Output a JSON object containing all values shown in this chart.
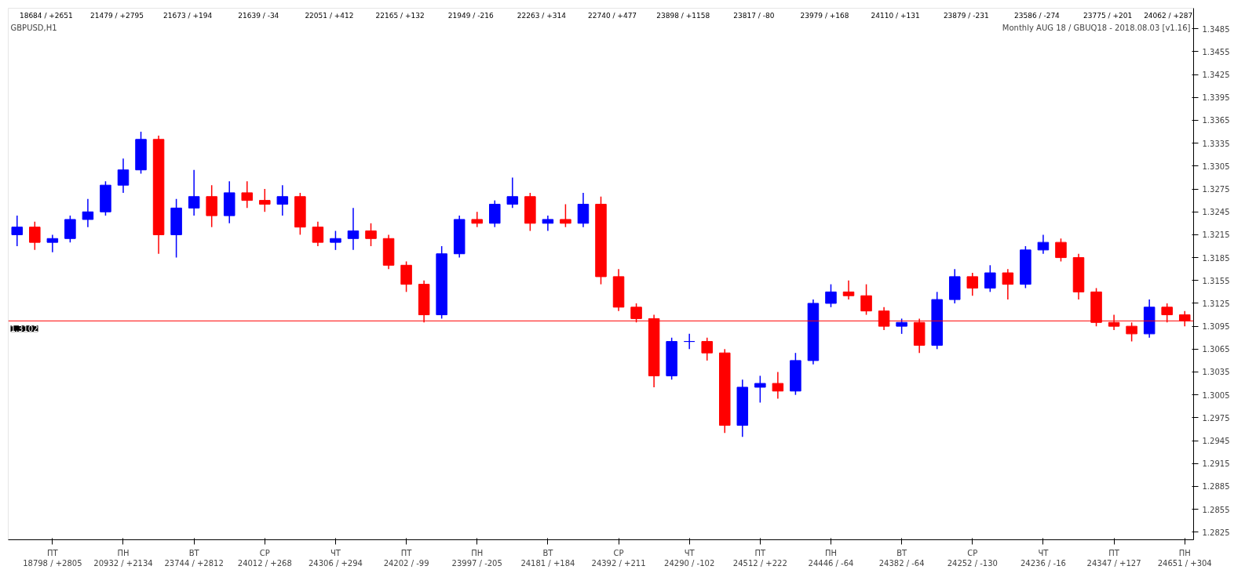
{
  "chart_data": {
    "type": "candlestick",
    "title": "GBPUSD,H1",
    "subtitle": "Monthly AUG 18 / GBUQ18 - 2018.08.03 [v1.16]",
    "categories": [
      null,
      null,
      "ПТ\n18798 / +2805",
      null,
      null,
      null,
      "ПН\n20932 / +2134",
      null,
      null,
      null,
      "ВТ\n23744 / +2812",
      null,
      null,
      null,
      "СР\n24012 / +268",
      null,
      null,
      null,
      "ЧТ\n24306 / +294",
      null,
      null,
      null,
      "ПТ\n24202 / -99",
      null,
      null,
      null,
      "ПН\n23997 / -205",
      null,
      null,
      null,
      "ВТ\n24181 / +184",
      null,
      null,
      null,
      "СР\n24392 / +211",
      null,
      null,
      null,
      "ЧТ\n24290 / -102",
      null,
      null,
      null,
      "ПТ\n24512 / +222",
      null,
      null,
      null,
      "ПН\n24446 / -64",
      null,
      null,
      null,
      "ВТ\n24382 / -64",
      null,
      null,
      null,
      "СР\n24252 / -130",
      null,
      null,
      null,
      "ЧТ\n24236 / -16",
      null,
      null,
      null,
      "ПТ\n24347 / +127",
      null,
      null,
      null,
      "ПН\n24651 / +304"
    ],
    "ohlc": [
      [
        1.3215,
        1.324,
        1.32,
        1.3225
      ],
      [
        1.3225,
        1.3232,
        1.3195,
        1.3205
      ],
      [
        1.3205,
        1.3215,
        1.3192,
        1.321
      ],
      [
        1.321,
        1.324,
        1.3205,
        1.3235
      ],
      [
        1.3235,
        1.3262,
        1.3225,
        1.3245
      ],
      [
        1.3245,
        1.3285,
        1.324,
        1.328
      ],
      [
        1.328,
        1.3315,
        1.327,
        1.33
      ],
      [
        1.33,
        1.335,
        1.3295,
        1.334
      ],
      [
        1.334,
        1.3345,
        1.319,
        1.3215
      ],
      [
        1.3215,
        1.3262,
        1.3185,
        1.325
      ],
      [
        1.325,
        1.33,
        1.324,
        1.3265
      ],
      [
        1.3265,
        1.328,
        1.3225,
        1.324
      ],
      [
        1.324,
        1.3285,
        1.323,
        1.327
      ],
      [
        1.327,
        1.3285,
        1.325,
        1.326
      ],
      [
        1.326,
        1.3275,
        1.3245,
        1.3255
      ],
      [
        1.3255,
        1.328,
        1.324,
        1.3265
      ],
      [
        1.3265,
        1.327,
        1.3215,
        1.3225
      ],
      [
        1.3225,
        1.3232,
        1.32,
        1.3205
      ],
      [
        1.3205,
        1.322,
        1.3195,
        1.321
      ],
      [
        1.321,
        1.325,
        1.3195,
        1.322
      ],
      [
        1.322,
        1.323,
        1.32,
        1.321
      ],
      [
        1.321,
        1.3215,
        1.317,
        1.3175
      ],
      [
        1.3175,
        1.318,
        1.314,
        1.315
      ],
      [
        1.315,
        1.3155,
        1.31,
        1.311
      ],
      [
        1.311,
        1.32,
        1.3105,
        1.319
      ],
      [
        1.319,
        1.324,
        1.3185,
        1.3235
      ],
      [
        1.3235,
        1.3245,
        1.3225,
        1.323
      ],
      [
        1.323,
        1.326,
        1.3225,
        1.3255
      ],
      [
        1.3255,
        1.329,
        1.325,
        1.3265
      ],
      [
        1.3265,
        1.327,
        1.322,
        1.323
      ],
      [
        1.323,
        1.324,
        1.322,
        1.3235
      ],
      [
        1.3235,
        1.3255,
        1.3225,
        1.323
      ],
      [
        1.323,
        1.327,
        1.3225,
        1.3255
      ],
      [
        1.3255,
        1.3265,
        1.315,
        1.316
      ],
      [
        1.316,
        1.317,
        1.3115,
        1.312
      ],
      [
        1.312,
        1.3125,
        1.31,
        1.3105
      ],
      [
        1.3105,
        1.311,
        1.3015,
        1.303
      ],
      [
        1.303,
        1.308,
        1.3025,
        1.3075
      ],
      [
        1.3075,
        1.3085,
        1.3065,
        1.3075
      ],
      [
        1.3075,
        1.308,
        1.305,
        1.306
      ],
      [
        1.306,
        1.3065,
        1.2955,
        1.2965
      ],
      [
        1.2965,
        1.3025,
        1.295,
        1.3015
      ],
      [
        1.3015,
        1.303,
        1.2995,
        1.302
      ],
      [
        1.302,
        1.3035,
        1.3,
        1.301
      ],
      [
        1.301,
        1.306,
        1.3005,
        1.305
      ],
      [
        1.305,
        1.313,
        1.3045,
        1.3125
      ],
      [
        1.3125,
        1.315,
        1.312,
        1.314
      ],
      [
        1.314,
        1.3155,
        1.313,
        1.3135
      ],
      [
        1.3135,
        1.315,
        1.311,
        1.3115
      ],
      [
        1.3115,
        1.312,
        1.309,
        1.3095
      ],
      [
        1.3095,
        1.3105,
        1.3085,
        1.31
      ],
      [
        1.31,
        1.3105,
        1.306,
        1.307
      ],
      [
        1.307,
        1.314,
        1.3065,
        1.313
      ],
      [
        1.313,
        1.317,
        1.3125,
        1.316
      ],
      [
        1.316,
        1.3165,
        1.3135,
        1.3145
      ],
      [
        1.3145,
        1.3175,
        1.314,
        1.3165
      ],
      [
        1.3165,
        1.317,
        1.313,
        1.315
      ],
      [
        1.315,
        1.32,
        1.3145,
        1.3195
      ],
      [
        1.3195,
        1.3215,
        1.319,
        1.3205
      ],
      [
        1.3205,
        1.321,
        1.318,
        1.3185
      ],
      [
        1.3185,
        1.319,
        1.313,
        1.314
      ],
      [
        1.314,
        1.3145,
        1.3095,
        1.31
      ],
      [
        1.31,
        1.311,
        1.309,
        1.3095
      ],
      [
        1.3095,
        1.31,
        1.3075,
        1.3085
      ],
      [
        1.3085,
        1.313,
        1.308,
        1.312
      ],
      [
        1.312,
        1.3125,
        1.31,
        1.311
      ],
      [
        1.311,
        1.3115,
        1.3095,
        1.3102
      ]
    ],
    "ylim": [
      1.2815,
      1.3512
    ],
    "yticks": [
      1.2825,
      1.2855,
      1.2885,
      1.2915,
      1.2945,
      1.2975,
      1.3005,
      1.3035,
      1.3065,
      1.3095,
      1.3125,
      1.3155,
      1.3185,
      1.3215,
      1.3245,
      1.3275,
      1.3305,
      1.3335,
      1.3365,
      1.3395,
      1.3425,
      1.3455,
      1.3485
    ],
    "ref_lines": [
      {
        "axis": "y",
        "value": 1.3102,
        "label": "1.3102",
        "color": "#ff0000"
      }
    ],
    "annotations": [
      "18684 / +2651",
      "21479 / +2795",
      "21673 / +194",
      "21639 / -34",
      "22051 / +412",
      "22165 / +132",
      "21949 / -216",
      "22263 / +314",
      "22740 / +477",
      "23898 / +1158",
      "23817 / -80",
      "23979 / +168",
      "24110 / +131",
      "23879 / -231",
      "23586 / -274",
      "23775 / +201",
      "24062 / +287"
    ],
    "grid": false
  }
}
